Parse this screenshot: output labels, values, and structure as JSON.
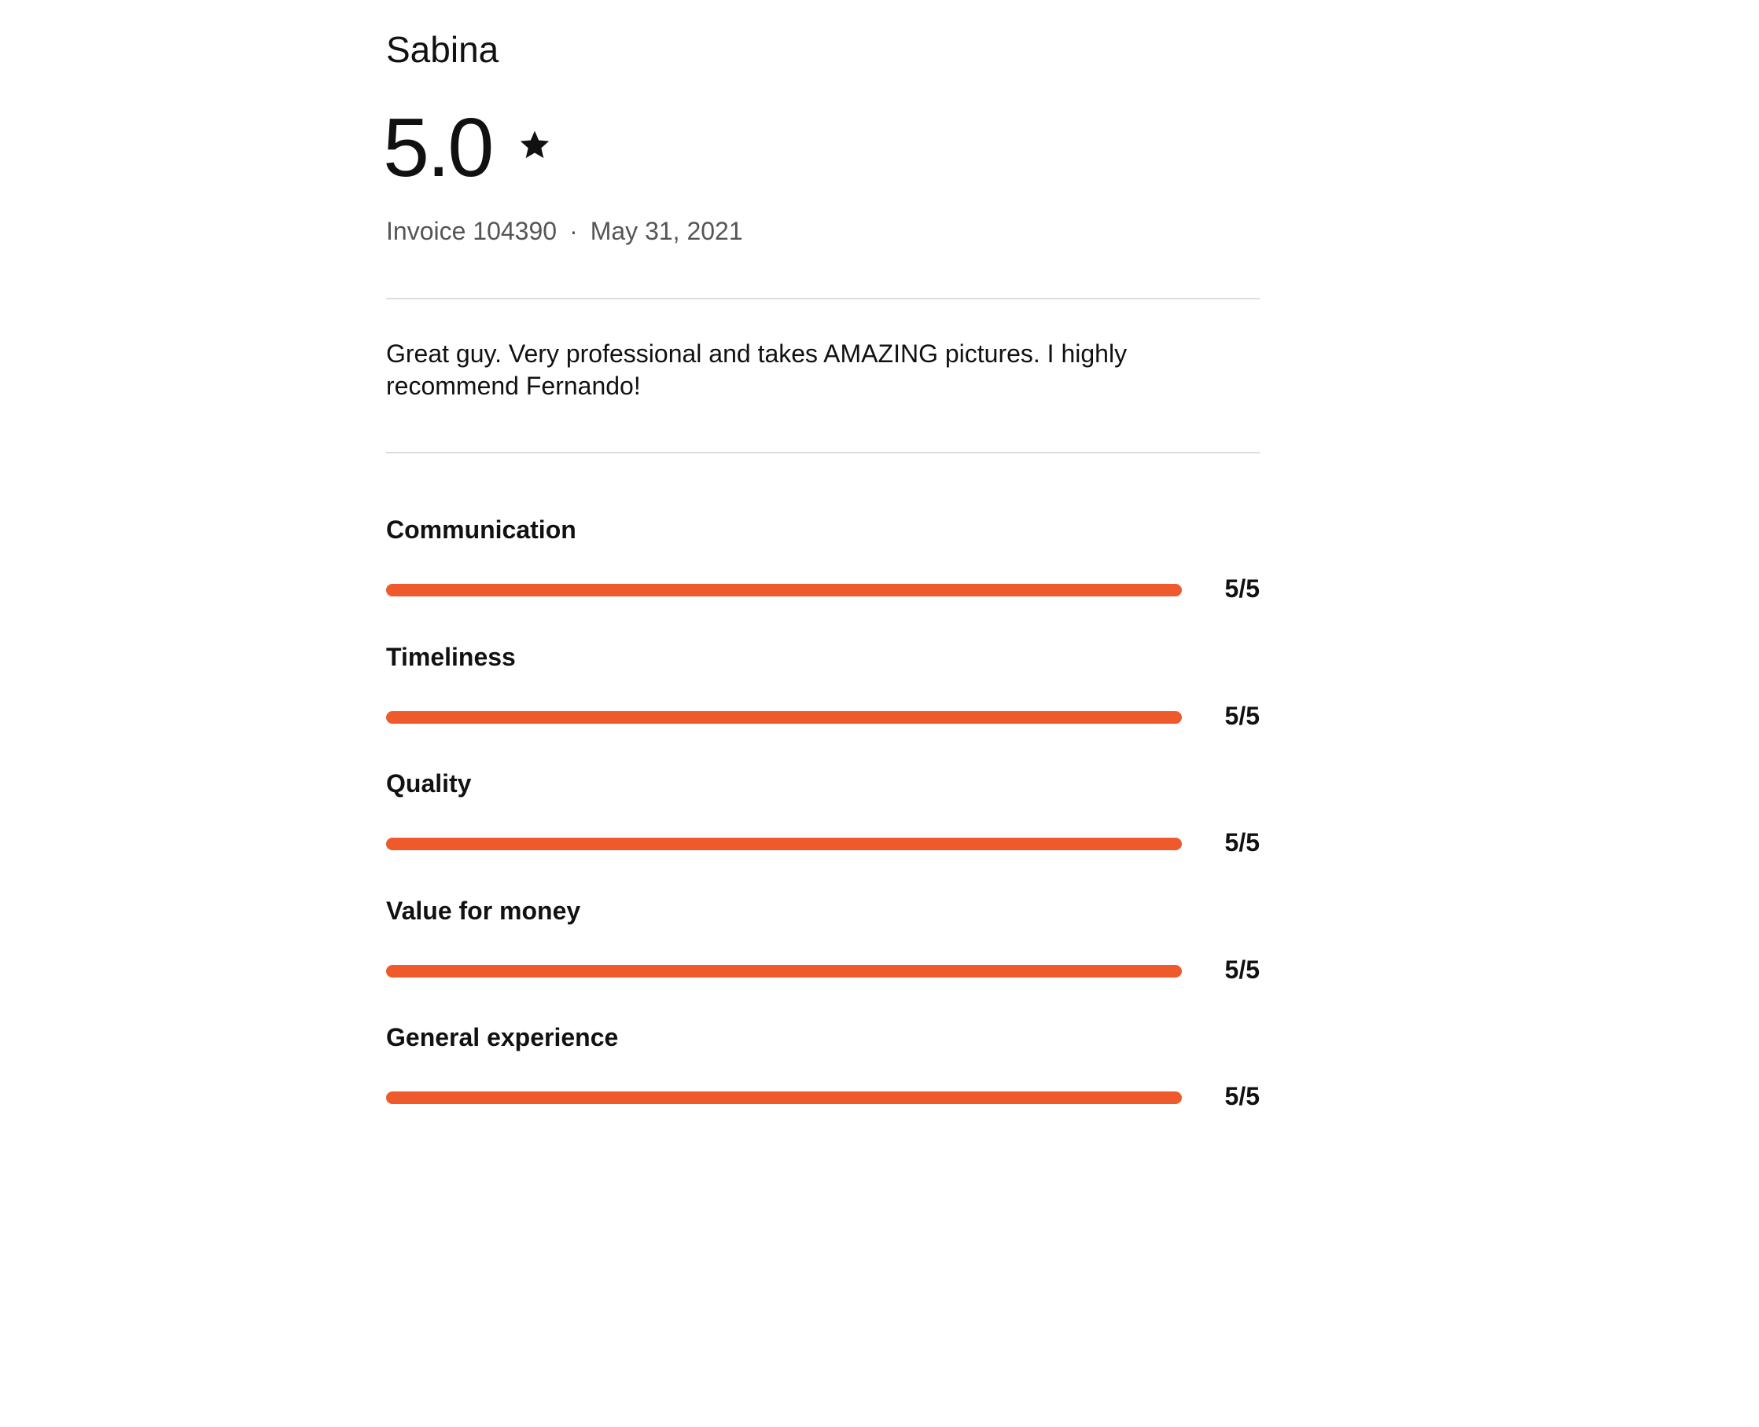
{
  "reviewer": "Sabina",
  "rating": "5.0",
  "invoice": "Invoice 104390",
  "separator": "·",
  "date": "May 31, 2021",
  "review": "Great guy. Very professional and takes AMAZING pictures.  I highly recommend Fernando!",
  "ratings": [
    {
      "label": "Communication",
      "score": 5,
      "max": 5,
      "score_label": "5/5"
    },
    {
      "label": "Timeliness",
      "score": 5,
      "max": 5,
      "score_label": "5/5"
    },
    {
      "label": "Quality",
      "score": 5,
      "max": 5,
      "score_label": "5/5"
    },
    {
      "label": "Value for money",
      "score": 5,
      "max": 5,
      "score_label": "5/5"
    },
    {
      "label": "General experience",
      "score": 5,
      "max": 5,
      "score_label": "5/5"
    }
  ]
}
